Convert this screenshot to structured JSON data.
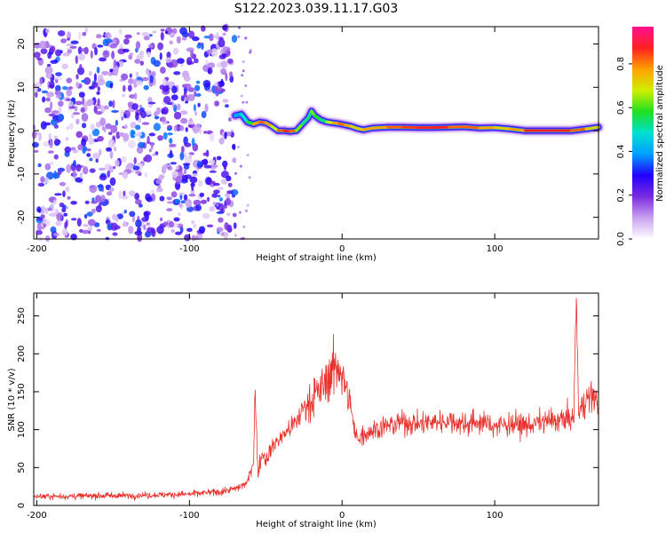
{
  "title": "S122.2023.039.11.17.G03",
  "chart_data": [
    {
      "type": "heatmap",
      "xlabel": "Height of straight line (km)",
      "ylabel": "Frequency (Hz)",
      "xlim": [
        -202,
        168
      ],
      "ylim": [
        -25,
        24
      ],
      "xticks": [
        -200,
        -100,
        0,
        100
      ],
      "yticks": [
        -20,
        -10,
        0,
        10,
        20
      ],
      "colorbar": {
        "label": "Normalized spectral amplitude",
        "range": [
          0.0,
          0.97
        ],
        "ticks": [
          "0.0",
          "0.2",
          "0.4",
          "0.6",
          "0.8"
        ],
        "colormap": [
          "#ffffff",
          "#c8a0f0",
          "#7b2be0",
          "#2200ff",
          "#00a0ff",
          "#00e0d0",
          "#20e020",
          "#d0f000",
          "#ffa000",
          "#ff2020",
          "#ff1090"
        ]
      },
      "noise_region_x": [
        -202,
        -70
      ],
      "ridge": {
        "x": [
          -70,
          -66,
          -62,
          -58,
          -54,
          -50,
          -46,
          -42,
          -38,
          -34,
          -30,
          -26,
          -22,
          -20,
          -18,
          -14,
          -10,
          -6,
          -2,
          2,
          6,
          10,
          14,
          20,
          30,
          40,
          50,
          60,
          70,
          80,
          90,
          100,
          110,
          120,
          130,
          140,
          150,
          160,
          168
        ],
        "frequency": [
          3.5,
          3.8,
          2.0,
          1.5,
          2.0,
          1.8,
          1.0,
          0.0,
          0.0,
          -0.2,
          0.0,
          1.5,
          3.0,
          4.5,
          3.5,
          2.5,
          2.0,
          1.8,
          1.6,
          1.3,
          1.0,
          0.5,
          0.2,
          0.6,
          0.8,
          0.8,
          0.7,
          0.7,
          0.8,
          0.9,
          0.6,
          0.7,
          0.4,
          0.0,
          0.0,
          0.0,
          0.0,
          0.4,
          0.8
        ],
        "amplitude": [
          0.4,
          0.5,
          0.6,
          0.8,
          0.85,
          0.8,
          0.7,
          0.85,
          0.9,
          0.85,
          0.65,
          0.55,
          0.55,
          0.65,
          0.6,
          0.55,
          0.7,
          0.8,
          0.85,
          0.8,
          0.75,
          0.75,
          0.8,
          0.8,
          0.85,
          0.88,
          0.9,
          0.9,
          0.85,
          0.85,
          0.8,
          0.75,
          0.8,
          0.9,
          0.92,
          0.9,
          0.85,
          0.75,
          0.6
        ]
      }
    },
    {
      "type": "line",
      "xlabel": "Height of straight line (km)",
      "ylabel": "SNR (10 * v/v)",
      "xlim": [
        -202,
        168
      ],
      "ylim": [
        0,
        280
      ],
      "xticks": [
        -200,
        -100,
        0,
        100
      ],
      "yticks": [
        0,
        50,
        100,
        150,
        200,
        250
      ],
      "series": [
        {
          "color": "#e8322d",
          "x": [
            -202,
            -180,
            -160,
            -140,
            -120,
            -100,
            -80,
            -70,
            -62,
            -58,
            -57,
            -56,
            -55,
            -54,
            -52,
            -50,
            -45,
            -40,
            -35,
            -30,
            -25,
            -20,
            -15,
            -10,
            -5,
            -2,
            0,
            2,
            4,
            6,
            8,
            10,
            20,
            30,
            40,
            50,
            60,
            70,
            80,
            90,
            100,
            110,
            120,
            130,
            140,
            150,
            152,
            153,
            154,
            155,
            156,
            157,
            160,
            165,
            168
          ],
          "y": [
            12,
            12,
            13,
            13,
            14,
            15,
            18,
            22,
            30,
            60,
            150,
            90,
            40,
            55,
            70,
            60,
            80,
            90,
            100,
            110,
            130,
            140,
            150,
            165,
            180,
            185,
            170,
            160,
            140,
            130,
            95,
            90,
            100,
            105,
            110,
            108,
            110,
            112,
            108,
            110,
            105,
            108,
            105,
            110,
            112,
            115,
            115,
            265,
            230,
            120,
            125,
            130,
            140,
            145,
            130
          ]
        }
      ]
    }
  ]
}
